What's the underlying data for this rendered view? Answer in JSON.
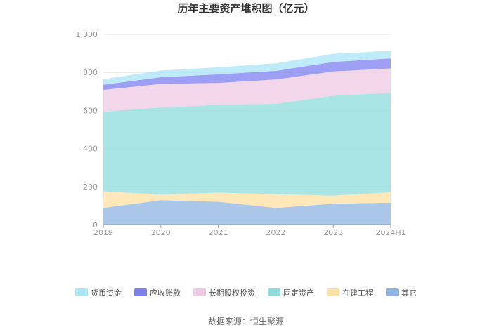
{
  "chart_data": {
    "type": "area",
    "stacked": true,
    "title": "历年主要资产堆积图（亿元）",
    "x": [
      "2019",
      "2020",
      "2021",
      "2022",
      "2023",
      "2024H1"
    ],
    "yticks": [
      "0",
      "200",
      "400",
      "600",
      "800",
      "1,000"
    ],
    "ylim": [
      0,
      1000
    ],
    "grid": true,
    "legend_position": "bottom",
    "series": [
      {
        "name": "其它",
        "color": "#8eb4e3",
        "values": [
          88,
          128,
          120,
          88,
          110,
          115
        ]
      },
      {
        "name": "在建工程",
        "color": "#fde0a3",
        "values": [
          87,
          30,
          48,
          72,
          42,
          55
        ]
      },
      {
        "name": "固定资产",
        "color": "#8ddcdc",
        "values": [
          418,
          457,
          462,
          475,
          525,
          523
        ]
      },
      {
        "name": "长期股权投资",
        "color": "#eec9e3",
        "values": [
          115,
          125,
          115,
          128,
          128,
          128
        ]
      },
      {
        "name": "应收账款",
        "color": "#7b7fef",
        "values": [
          27,
          35,
          45,
          45,
          50,
          53
        ]
      },
      {
        "name": "货币资金",
        "color": "#a9e4f7",
        "values": [
          30,
          35,
          37,
          40,
          43,
          40
        ]
      }
    ],
    "legend_order": [
      "货币资金",
      "应收账款",
      "长期股权投资",
      "固定资产",
      "在建工程",
      "其它"
    ]
  },
  "source": "数据来源：恒生聚源"
}
